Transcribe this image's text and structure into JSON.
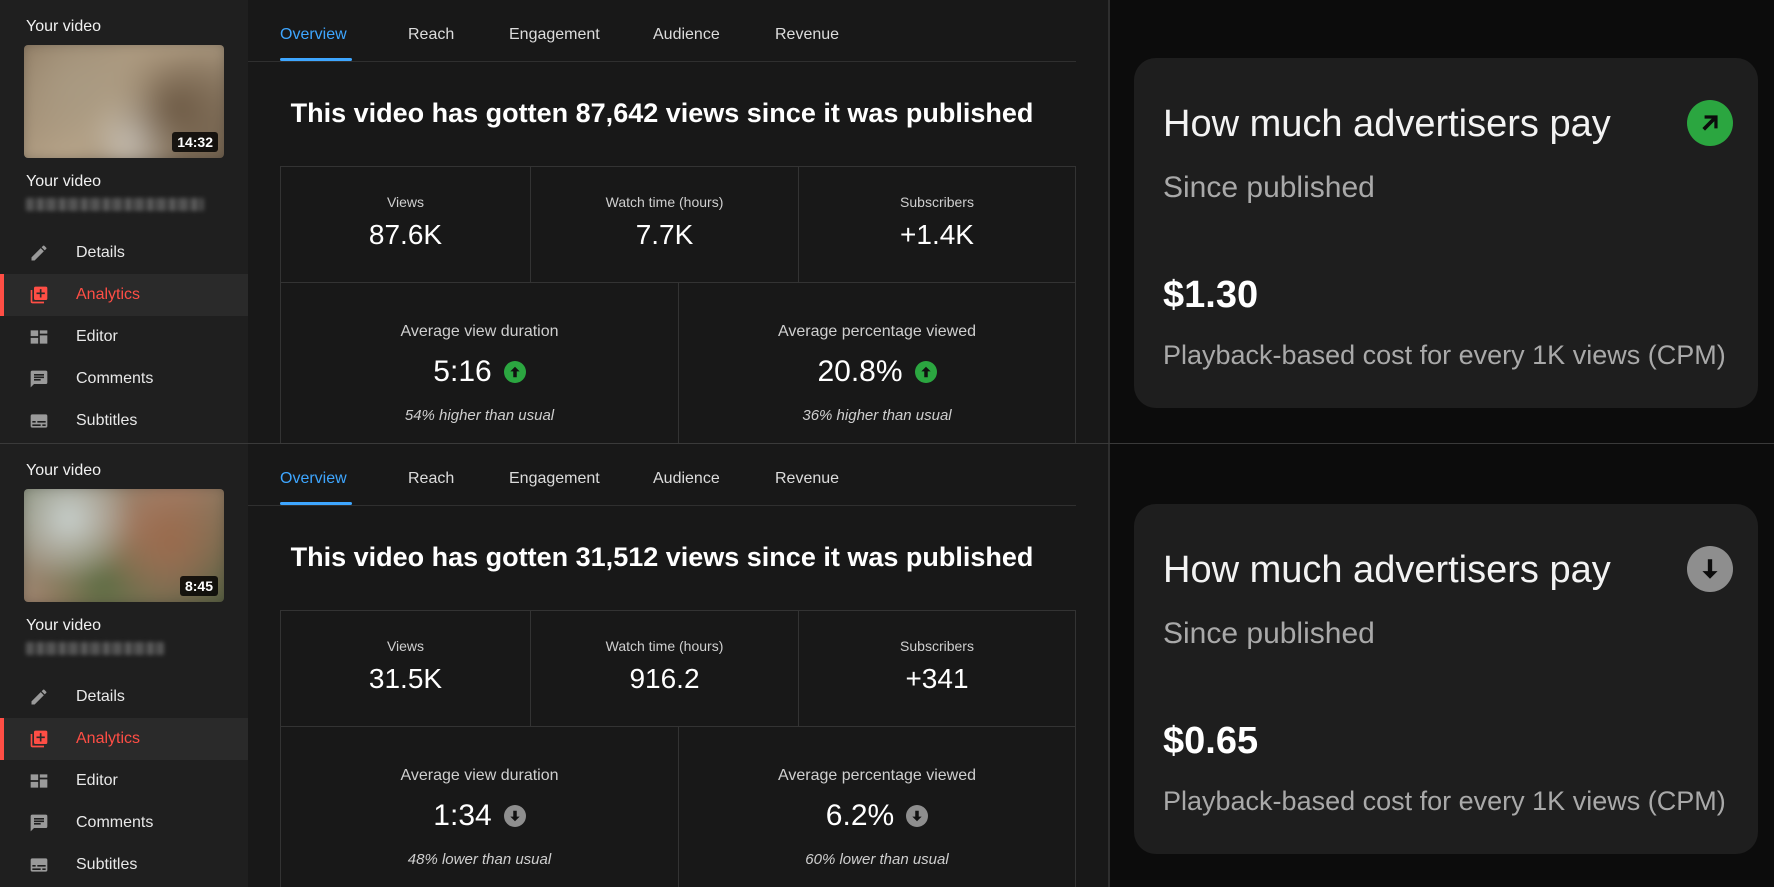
{
  "panels": [
    {
      "sidebar": {
        "heading": "Your video",
        "duration": "14:32",
        "title": "Your video",
        "nav": [
          {
            "label": "Details",
            "icon": "pencil-icon",
            "active": false
          },
          {
            "label": "Analytics",
            "icon": "analytics-icon",
            "active": true
          },
          {
            "label": "Editor",
            "icon": "editor-icon",
            "active": false
          },
          {
            "label": "Comments",
            "icon": "comments-icon",
            "active": false
          },
          {
            "label": "Subtitles",
            "icon": "subtitles-icon",
            "active": false
          }
        ]
      },
      "tabs": [
        "Overview",
        "Reach",
        "Engagement",
        "Audience",
        "Revenue"
      ],
      "active_tab": "Overview",
      "headline": "This video has gotten 87,642 views since it was published",
      "metrics_top": [
        {
          "label": "Views",
          "value": "87.6K"
        },
        {
          "label": "Watch time (hours)",
          "value": "7.7K"
        },
        {
          "label": "Subscribers",
          "value": "+1.4K"
        }
      ],
      "metrics_bottom": [
        {
          "label": "Average view duration",
          "value": "5:16",
          "trend": "up",
          "note": "54% higher than usual"
        },
        {
          "label": "Average percentage viewed",
          "value": "20.8%",
          "trend": "up",
          "note": "36% higher than usual"
        }
      ],
      "card": {
        "title": "How much advertisers pay",
        "subtitle": "Since published",
        "value": "$1.30",
        "description": "Playback-based cost for every 1K views (CPM)",
        "trend": "up",
        "trend_color": "#2ba640"
      }
    },
    {
      "sidebar": {
        "heading": "Your video",
        "duration": "8:45",
        "title": "Your video",
        "nav": [
          {
            "label": "Details",
            "icon": "pencil-icon",
            "active": false
          },
          {
            "label": "Analytics",
            "icon": "analytics-icon",
            "active": true
          },
          {
            "label": "Editor",
            "icon": "editor-icon",
            "active": false
          },
          {
            "label": "Comments",
            "icon": "comments-icon",
            "active": false
          },
          {
            "label": "Subtitles",
            "icon": "subtitles-icon",
            "active": false
          }
        ]
      },
      "tabs": [
        "Overview",
        "Reach",
        "Engagement",
        "Audience",
        "Revenue"
      ],
      "active_tab": "Overview",
      "headline": "This video has gotten 31,512 views since it was published",
      "metrics_top": [
        {
          "label": "Views",
          "value": "31.5K"
        },
        {
          "label": "Watch time (hours)",
          "value": "916.2"
        },
        {
          "label": "Subscribers",
          "value": "+341"
        }
      ],
      "metrics_bottom": [
        {
          "label": "Average view duration",
          "value": "1:34",
          "trend": "down",
          "note": "48% lower than usual"
        },
        {
          "label": "Average percentage viewed",
          "value": "6.2%",
          "trend": "down",
          "note": "60% lower than usual"
        }
      ],
      "card": {
        "title": "How much advertisers pay",
        "subtitle": "Since published",
        "value": "$0.65",
        "description": "Playback-based cost for every 1K views (CPM)",
        "trend": "down",
        "trend_color": "#8e8e8e"
      }
    }
  ],
  "colors": {
    "accent_blue": "#3ea6ff",
    "active_red": "#ff4e45",
    "trend_up": "#2ba640",
    "trend_down": "#8e8e8e"
  }
}
